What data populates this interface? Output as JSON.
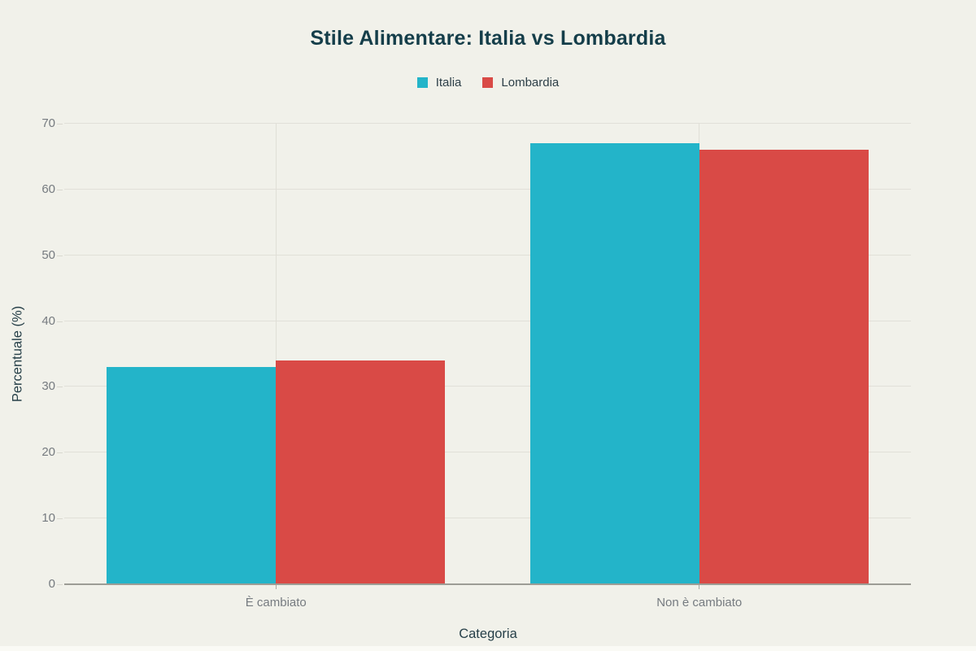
{
  "page": {
    "background": "#f1f1ea",
    "bottom_strip_color": "#fafaf5"
  },
  "chart_data": {
    "type": "bar",
    "title": "Stile Alimentare: Italia vs Lombardia",
    "categories": [
      "È cambiato",
      "Non è cambiato"
    ],
    "series": [
      {
        "name": "Italia",
        "color": "#23b4c9",
        "values": [
          33,
          67
        ]
      },
      {
        "name": "Lombardia",
        "color": "#d94a46",
        "values": [
          34,
          66
        ]
      }
    ],
    "xlabel": "Categoria",
    "ylabel": "Percentuale (%)",
    "ylim": [
      0,
      70
    ],
    "yticks": [
      0,
      10,
      20,
      30,
      40,
      50,
      60,
      70
    ],
    "grid": true,
    "legend_position": "top-center",
    "colors": {
      "title": "#153e4a",
      "axis_title": "#274049",
      "tick_label": "#767b80",
      "grid_line": "#e1e0d8",
      "axis_line": "#9d9d96"
    }
  }
}
